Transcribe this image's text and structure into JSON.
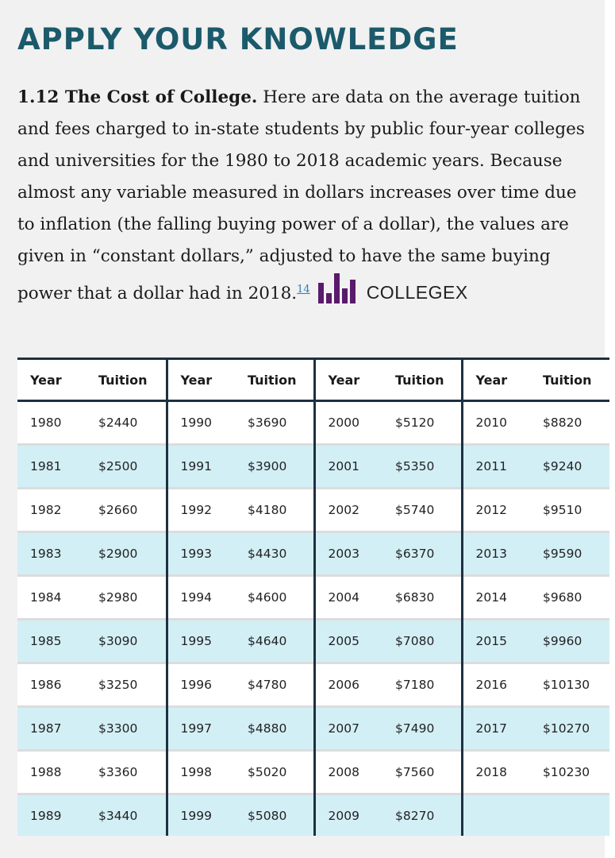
{
  "heading": "APPLY YOUR KNOWLEDGE",
  "exercise": {
    "title": "1.12 The Cost of College.",
    "body": "Here are data on the average tuition and fees charged to in-state students by public four-year colleges and universities for the 1980 to 2018 academic years. Because almost any variable measured in dollars increases over time due to inflation (the falling buying power of a dollar), the values are given in “constant dollars,” adjusted to have the same buying power that a dollar had in 2018.",
    "footnote": "14",
    "logo_text": "COLLEGEX",
    "logo_icon": "bar-chart-icon"
  },
  "colors": {
    "heading": "#1b5a6b",
    "row_alt": "#d3eff6",
    "rule": "#1d3040",
    "logo": "#5a1a6b"
  },
  "table": {
    "headers": [
      "Year",
      "Tuition",
      "Year",
      "Tuition",
      "Year",
      "Tuition",
      "Year",
      "Tuition"
    ],
    "rows": [
      [
        "1980",
        "$2440",
        "1990",
        "$3690",
        "2000",
        "$5120",
        "2010",
        "$8820"
      ],
      [
        "1981",
        "$2500",
        "1991",
        "$3900",
        "2001",
        "$5350",
        "2011",
        "$9240"
      ],
      [
        "1982",
        "$2660",
        "1992",
        "$4180",
        "2002",
        "$5740",
        "2012",
        "$9510"
      ],
      [
        "1983",
        "$2900",
        "1993",
        "$4430",
        "2003",
        "$6370",
        "2013",
        "$9590"
      ],
      [
        "1984",
        "$2980",
        "1994",
        "$4600",
        "2004",
        "$6830",
        "2014",
        "$9680"
      ],
      [
        "1985",
        "$3090",
        "1995",
        "$4640",
        "2005",
        "$7080",
        "2015",
        "$9960"
      ],
      [
        "1986",
        "$3250",
        "1996",
        "$4780",
        "2006",
        "$7180",
        "2016",
        "$10130"
      ],
      [
        "1987",
        "$3300",
        "1997",
        "$4880",
        "2007",
        "$7490",
        "2017",
        "$10270"
      ],
      [
        "1988",
        "$3360",
        "1998",
        "$5020",
        "2008",
        "$7560",
        "2018",
        "$10230"
      ],
      [
        "1989",
        "$3440",
        "1999",
        "$5080",
        "2009",
        "$8270",
        "",
        ""
      ]
    ]
  }
}
